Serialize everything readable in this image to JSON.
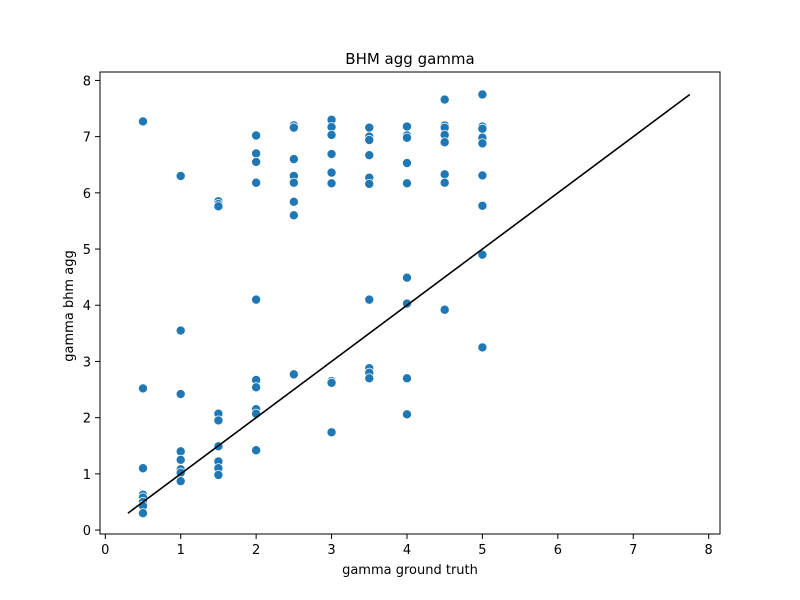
{
  "chart_data": {
    "type": "scatter",
    "title": "BHM agg gamma",
    "xlabel": "gamma ground truth",
    "ylabel": "gamma bhm agg",
    "xlim": [
      -0.07,
      8.15
    ],
    "ylim": [
      -0.07,
      8.15
    ],
    "xticks": [
      "0",
      "1",
      "2",
      "3",
      "4",
      "5",
      "6",
      "7",
      "8"
    ],
    "yticks": [
      "0",
      "1",
      "2",
      "3",
      "4",
      "5",
      "6",
      "7",
      "8"
    ],
    "grid": false,
    "point_color": "#1f77b4",
    "line_color": "#000000",
    "reference_line": {
      "x": [
        0.3,
        7.75
      ],
      "y": [
        0.3,
        7.75
      ]
    },
    "points": [
      {
        "x": 0.5,
        "y": 7.27
      },
      {
        "x": 0.5,
        "y": 2.52
      },
      {
        "x": 0.5,
        "y": 1.1
      },
      {
        "x": 0.5,
        "y": 0.63
      },
      {
        "x": 0.5,
        "y": 0.58
      },
      {
        "x": 0.5,
        "y": 0.5
      },
      {
        "x": 0.5,
        "y": 0.43
      },
      {
        "x": 0.5,
        "y": 0.3
      },
      {
        "x": 1.0,
        "y": 6.3
      },
      {
        "x": 1.0,
        "y": 3.55
      },
      {
        "x": 1.0,
        "y": 2.42
      },
      {
        "x": 1.0,
        "y": 1.4
      },
      {
        "x": 1.0,
        "y": 1.25
      },
      {
        "x": 1.0,
        "y": 1.08
      },
      {
        "x": 1.0,
        "y": 1.02
      },
      {
        "x": 1.0,
        "y": 0.87
      },
      {
        "x": 1.5,
        "y": 5.85
      },
      {
        "x": 1.5,
        "y": 5.8
      },
      {
        "x": 1.5,
        "y": 5.76
      },
      {
        "x": 1.5,
        "y": 2.07
      },
      {
        "x": 1.5,
        "y": 1.95
      },
      {
        "x": 1.5,
        "y": 1.49
      },
      {
        "x": 1.5,
        "y": 1.22
      },
      {
        "x": 1.5,
        "y": 1.1
      },
      {
        "x": 1.5,
        "y": 0.98
      },
      {
        "x": 2.0,
        "y": 7.02
      },
      {
        "x": 2.0,
        "y": 6.7
      },
      {
        "x": 2.0,
        "y": 6.55
      },
      {
        "x": 2.0,
        "y": 6.18
      },
      {
        "x": 2.0,
        "y": 4.1
      },
      {
        "x": 2.0,
        "y": 2.67
      },
      {
        "x": 2.0,
        "y": 2.54
      },
      {
        "x": 2.0,
        "y": 2.15
      },
      {
        "x": 2.0,
        "y": 2.07
      },
      {
        "x": 2.0,
        "y": 1.42
      },
      {
        "x": 2.5,
        "y": 7.2
      },
      {
        "x": 2.5,
        "y": 7.16
      },
      {
        "x": 2.5,
        "y": 6.6
      },
      {
        "x": 2.5,
        "y": 6.3
      },
      {
        "x": 2.5,
        "y": 6.18
      },
      {
        "x": 2.5,
        "y": 5.84
      },
      {
        "x": 2.5,
        "y": 5.6
      },
      {
        "x": 2.5,
        "y": 2.77
      },
      {
        "x": 3.0,
        "y": 7.3
      },
      {
        "x": 3.0,
        "y": 7.17
      },
      {
        "x": 3.0,
        "y": 7.03
      },
      {
        "x": 3.0,
        "y": 6.69
      },
      {
        "x": 3.0,
        "y": 6.36
      },
      {
        "x": 3.0,
        "y": 6.17
      },
      {
        "x": 3.0,
        "y": 2.65
      },
      {
        "x": 3.0,
        "y": 2.62
      },
      {
        "x": 3.0,
        "y": 1.74
      },
      {
        "x": 3.5,
        "y": 7.16
      },
      {
        "x": 3.5,
        "y": 7.0
      },
      {
        "x": 3.5,
        "y": 6.94
      },
      {
        "x": 3.5,
        "y": 6.67
      },
      {
        "x": 3.5,
        "y": 6.27
      },
      {
        "x": 3.5,
        "y": 6.16
      },
      {
        "x": 3.5,
        "y": 4.1
      },
      {
        "x": 3.5,
        "y": 2.88
      },
      {
        "x": 3.5,
        "y": 2.8
      },
      {
        "x": 3.5,
        "y": 2.7
      },
      {
        "x": 4.0,
        "y": 7.18
      },
      {
        "x": 4.0,
        "y": 7.02
      },
      {
        "x": 4.0,
        "y": 6.98
      },
      {
        "x": 4.0,
        "y": 6.53
      },
      {
        "x": 4.0,
        "y": 6.17
      },
      {
        "x": 4.0,
        "y": 4.49
      },
      {
        "x": 4.0,
        "y": 4.03
      },
      {
        "x": 4.0,
        "y": 2.7
      },
      {
        "x": 4.0,
        "y": 2.06
      },
      {
        "x": 4.5,
        "y": 7.66
      },
      {
        "x": 4.5,
        "y": 7.2
      },
      {
        "x": 4.5,
        "y": 7.16
      },
      {
        "x": 4.5,
        "y": 7.03
      },
      {
        "x": 4.5,
        "y": 6.9
      },
      {
        "x": 4.5,
        "y": 6.33
      },
      {
        "x": 4.5,
        "y": 6.18
      },
      {
        "x": 4.5,
        "y": 3.92
      },
      {
        "x": 5.0,
        "y": 7.75
      },
      {
        "x": 5.0,
        "y": 7.18
      },
      {
        "x": 5.0,
        "y": 7.14
      },
      {
        "x": 5.0,
        "y": 6.98
      },
      {
        "x": 5.0,
        "y": 6.88
      },
      {
        "x": 5.0,
        "y": 6.31
      },
      {
        "x": 5.0,
        "y": 5.77
      },
      {
        "x": 5.0,
        "y": 4.9
      },
      {
        "x": 5.0,
        "y": 3.25
      }
    ]
  }
}
